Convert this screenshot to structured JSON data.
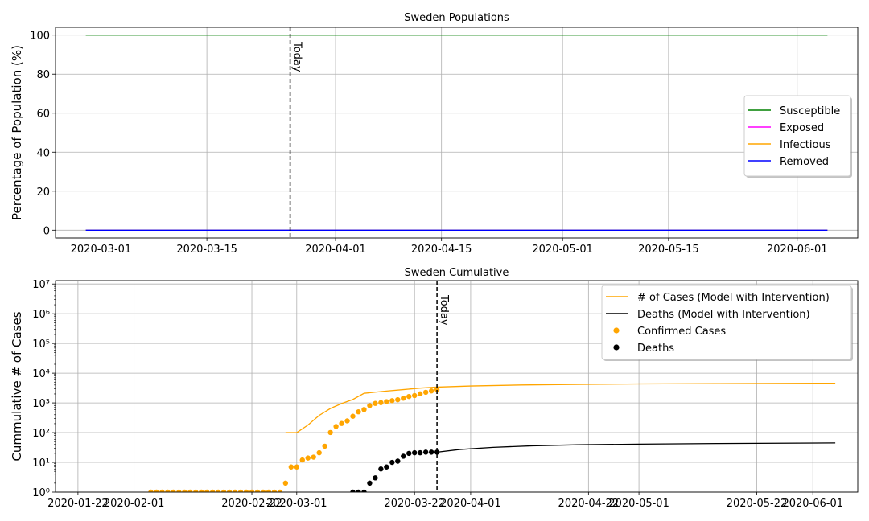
{
  "chart_data": [
    {
      "type": "line",
      "title": "Sweden Populations",
      "xlabel": "",
      "ylabel": "Percentage of Population (%)",
      "x_range": [
        "2020-02-24",
        "2020-06-09"
      ],
      "ylim": [
        -4,
        104
      ],
      "x_ticks": [
        "2020-03-01",
        "2020-03-15",
        "2020-04-01",
        "2020-04-15",
        "2020-05-01",
        "2020-05-15",
        "2020-06-01"
      ],
      "y_ticks": [
        0,
        20,
        40,
        60,
        80,
        100
      ],
      "grid": true,
      "legend_position": "center-right",
      "series": [
        {
          "name": "Susceptible",
          "color": "#008000",
          "x": [
            "2020-02-28",
            "2020-06-05"
          ],
          "values": [
            100,
            100
          ]
        },
        {
          "name": "Exposed",
          "color": "#ff00ff",
          "x": [
            "2020-02-28",
            "2020-06-05"
          ],
          "values": [
            0,
            0
          ]
        },
        {
          "name": "Infectious",
          "color": "#ffa500",
          "x": [
            "2020-02-28",
            "2020-06-05"
          ],
          "values": [
            0,
            0
          ]
        },
        {
          "name": "Removed",
          "color": "#0000ff",
          "x": [
            "2020-02-28",
            "2020-06-05"
          ],
          "values": [
            0,
            0
          ]
        }
      ],
      "annotations": [
        {
          "type": "vline",
          "x": "2020-03-26",
          "label": "Today"
        }
      ]
    },
    {
      "type": "line",
      "title": "Sweden Cumulative",
      "xlabel": "",
      "ylabel": "Cummulative # of Cases",
      "yscale": "log",
      "x_range": [
        "2020-01-18",
        "2020-06-09"
      ],
      "ylim": [
        1,
        13000000
      ],
      "x_ticks": [
        "2020-01-22",
        "2020-02-01",
        "2020-02-22",
        "2020-03-01",
        "2020-03-22",
        "2020-04-01",
        "2020-04-22",
        "2020-05-01",
        "2020-05-22",
        "2020-06-01"
      ],
      "y_ticks": [
        1,
        10,
        100,
        1000,
        10000,
        100000,
        1000000,
        10000000
      ],
      "y_tick_labels": [
        "10⁰",
        "10¹",
        "10²",
        "10³",
        "10⁴",
        "10⁵",
        "10⁶",
        "10⁷"
      ],
      "grid": true,
      "legend_position": "top-right",
      "series": [
        {
          "name": "# of Cases (Model with Intervention)",
          "color": "#ffa500",
          "style": "line",
          "x": [
            "2020-02-28",
            "2020-03-01",
            "2020-03-03",
            "2020-03-05",
            "2020-03-07",
            "2020-03-09",
            "2020-03-11",
            "2020-03-13",
            "2020-03-15",
            "2020-03-17",
            "2020-03-20",
            "2020-03-23",
            "2020-03-26",
            "2020-04-01",
            "2020-04-10",
            "2020-04-20",
            "2020-05-01",
            "2020-05-15",
            "2020-06-05"
          ],
          "values": [
            100,
            100,
            180,
            380,
            650,
            950,
            1300,
            2100,
            2300,
            2500,
            2800,
            3150,
            3400,
            3700,
            4000,
            4200,
            4350,
            4450,
            4600
          ]
        },
        {
          "name": "Deaths (Model with Intervention)",
          "color": "#000000",
          "style": "line",
          "x": [
            "2020-03-26",
            "2020-03-30",
            "2020-04-05",
            "2020-04-12",
            "2020-04-20",
            "2020-05-01",
            "2020-05-15",
            "2020-06-05"
          ],
          "values": [
            22,
            27,
            32,
            36,
            39,
            41,
            43,
            45
          ]
        },
        {
          "name": "Confirmed Cases",
          "color": "#ffa500",
          "style": "scatter",
          "x": [
            "2020-02-04",
            "2020-02-05",
            "2020-02-06",
            "2020-02-07",
            "2020-02-08",
            "2020-02-09",
            "2020-02-10",
            "2020-02-11",
            "2020-02-12",
            "2020-02-13",
            "2020-02-14",
            "2020-02-15",
            "2020-02-16",
            "2020-02-17",
            "2020-02-18",
            "2020-02-19",
            "2020-02-20",
            "2020-02-21",
            "2020-02-22",
            "2020-02-23",
            "2020-02-24",
            "2020-02-25",
            "2020-02-26",
            "2020-02-27",
            "2020-02-28",
            "2020-02-29",
            "2020-03-01",
            "2020-03-02",
            "2020-03-03",
            "2020-03-04",
            "2020-03-05",
            "2020-03-06",
            "2020-03-07",
            "2020-03-08",
            "2020-03-09",
            "2020-03-10",
            "2020-03-11",
            "2020-03-12",
            "2020-03-13",
            "2020-03-14",
            "2020-03-15",
            "2020-03-16",
            "2020-03-17",
            "2020-03-18",
            "2020-03-19",
            "2020-03-20",
            "2020-03-21",
            "2020-03-22",
            "2020-03-23",
            "2020-03-24",
            "2020-03-25",
            "2020-03-26"
          ],
          "values": [
            1,
            1,
            1,
            1,
            1,
            1,
            1,
            1,
            1,
            1,
            1,
            1,
            1,
            1,
            1,
            1,
            1,
            1,
            1,
            1,
            1,
            1,
            1,
            1,
            2,
            7,
            7,
            12,
            14,
            15,
            21,
            35,
            101,
            161,
            203,
            248,
            355,
            500,
            599,
            814,
            961,
            1022,
            1103,
            1190,
            1279,
            1439,
            1639,
            1763,
            2016,
            2272,
            2526,
            2840
          ]
        },
        {
          "name": "Deaths",
          "color": "#000000",
          "style": "scatter",
          "x": [
            "2020-03-11",
            "2020-03-12",
            "2020-03-13",
            "2020-03-14",
            "2020-03-15",
            "2020-03-16",
            "2020-03-17",
            "2020-03-18",
            "2020-03-19",
            "2020-03-20",
            "2020-03-21",
            "2020-03-22",
            "2020-03-23",
            "2020-03-24",
            "2020-03-25",
            "2020-03-26"
          ],
          "values": [
            1,
            1,
            1,
            2,
            3,
            6,
            7,
            10,
            11,
            16,
            20,
            21,
            21,
            22,
            22,
            22
          ]
        }
      ],
      "annotations": [
        {
          "type": "vline",
          "x": "2020-03-26",
          "label": "Today"
        }
      ]
    }
  ]
}
